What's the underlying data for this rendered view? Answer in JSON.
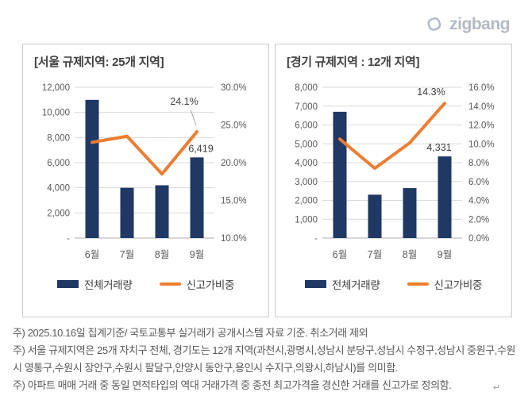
{
  "header": {
    "logo_text": "zigbang"
  },
  "colors": {
    "bar": "#1F3864",
    "line": "#ED7D31",
    "axis_text": "#595959",
    "grid": "#D9D9D9",
    "baseline": "#BFBFBF",
    "box_border": "#C9CBCD",
    "title": "#404040",
    "data_label": "#404040",
    "leader": "#A6A6A6",
    "logo": "#B3BAC5",
    "footnote": "#595959"
  },
  "charts": [
    {
      "title": "[서울 규제지역: 25개 지역]",
      "chart_data": {
        "type": "bar+line combo",
        "categories": [
          "6월",
          "7월",
          "8월",
          "9월"
        ],
        "series": [
          {
            "name": "전체거래량",
            "type": "bar",
            "axis": "left",
            "values": [
              11000,
              4000,
              4200,
              6419
            ]
          },
          {
            "name": "신고가비중",
            "type": "line",
            "axis": "right",
            "values": [
              22.7,
              23.5,
              18.5,
              24.1
            ]
          }
        ],
        "left_axis": {
          "min": 0,
          "max": 12000,
          "step": 2000,
          "tick_labels": [
            "-",
            "2,000",
            "4,000",
            "6,000",
            "8,000",
            "10,000",
            "12,000"
          ]
        },
        "right_axis": {
          "min": 10,
          "max": 30,
          "step": 5,
          "tick_labels": [
            "10.0%",
            "15.0%",
            "20.0%",
            "25.0%",
            "30.0%"
          ]
        },
        "data_labels": {
          "bar": {
            "index": 3,
            "text": "6,419",
            "dx": 5
          },
          "line": {
            "index": 3,
            "text": "24.1%",
            "leader": true
          }
        },
        "grid": true,
        "legend_position": "bottom"
      },
      "legend": [
        {
          "label": "전체거래량",
          "swatch": "bar"
        },
        {
          "label": "신고가비중",
          "swatch": "line"
        }
      ]
    },
    {
      "title": "[경기 규제지역 : 12개 지역]",
      "chart_data": {
        "type": "bar+line combo",
        "categories": [
          "6월",
          "7월",
          "8월",
          "9월"
        ],
        "series": [
          {
            "name": "전체거래량",
            "type": "bar",
            "axis": "left",
            "values": [
              6700,
              2300,
              2650,
              4331
            ]
          },
          {
            "name": "신고가비중",
            "type": "line",
            "axis": "right",
            "values": [
              10.5,
              7.4,
              10.1,
              14.3
            ]
          }
        ],
        "left_axis": {
          "min": 0,
          "max": 8000,
          "step": 1000,
          "tick_labels": [
            "-",
            "1,000",
            "2,000",
            "3,000",
            "4,000",
            "5,000",
            "6,000",
            "7,000",
            "8,000"
          ]
        },
        "right_axis": {
          "min": 0,
          "max": 16,
          "step": 2,
          "tick_labels": [
            "0.0%",
            "2.0%",
            "4.0%",
            "6.0%",
            "8.0%",
            "10.0%",
            "12.0%",
            "14.0%",
            "16.0%"
          ]
        },
        "data_labels": {
          "bar": {
            "index": 3,
            "text": "4,331",
            "dx": -7
          },
          "line": {
            "index": 3,
            "text": "14.3%",
            "leader": false
          }
        },
        "grid": true,
        "legend_position": "bottom"
      },
      "legend": [
        {
          "label": "전체거래량",
          "swatch": "bar"
        },
        {
          "label": "신고가비중",
          "swatch": "line"
        }
      ]
    }
  ],
  "footnotes": [
    "주) 2025.10.16일 집계기준/ 국토교통부 실거래가 공개시스템 자료 기준. 취소거래 제외",
    "주) 서울 규제지역은 25개 자치구 전체, 경기도는 12개 지역(과천시,광명시,성남시 분당구,성남시 수정구,성남시 중원구,수원시 영통구,수원시 장안구,수원시 팔달구,안양시 동안구,용인시 수지구,의왕시,하남시)를 의미함.",
    "주) 아파트 매매 거래 중 동일 면적타입의 역대 거래가격 중 종전 최고가격을 경신한 거래를 신고가로 정의함."
  ],
  "misc": {
    "return_mark": "↵"
  }
}
